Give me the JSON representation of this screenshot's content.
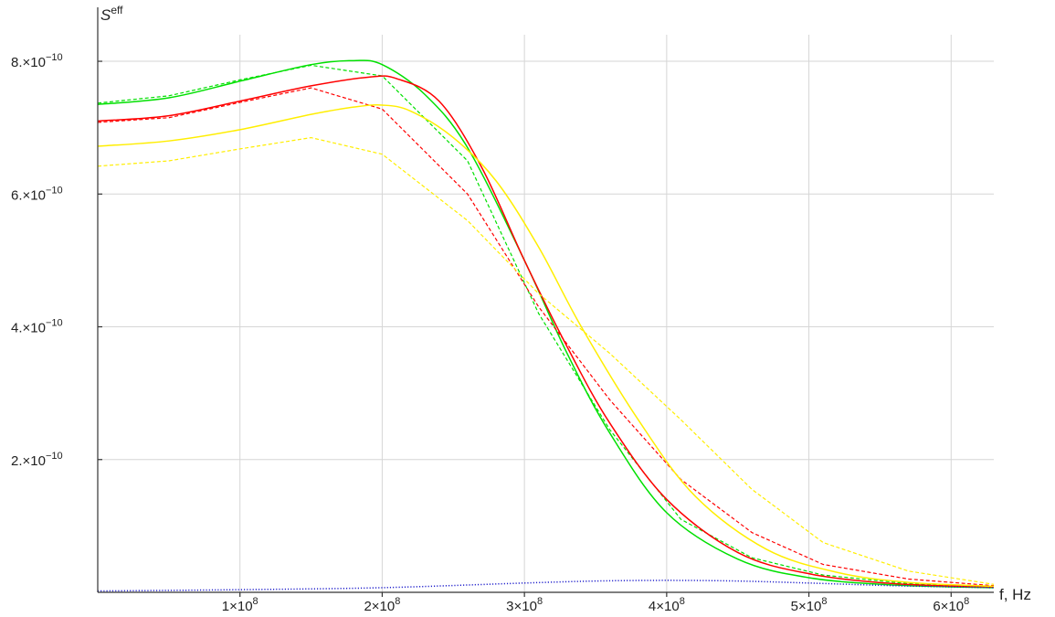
{
  "chart_data": {
    "type": "line",
    "title": "",
    "xlabel": "f, Hz",
    "ylabel_base": "S",
    "ylabel_sup": "eff",
    "xlim": [
      0,
      630000000
    ],
    "ylim": [
      0,
      8.4e-10
    ],
    "grid": true,
    "x_ticks": [
      {
        "value": 100000000,
        "mant": "1",
        "times": "×10",
        "exp": "8"
      },
      {
        "value": 200000000,
        "mant": "2",
        "times": "×10",
        "exp": "8"
      },
      {
        "value": 300000000,
        "mant": "3",
        "times": "×10",
        "exp": "8"
      },
      {
        "value": 400000000,
        "mant": "4",
        "times": "×10",
        "exp": "8"
      },
      {
        "value": 500000000,
        "mant": "5",
        "times": "×10",
        "exp": "8"
      },
      {
        "value": 600000000,
        "mant": "6",
        "times": "×10",
        "exp": "8"
      }
    ],
    "y_ticks": [
      {
        "value": 2e-10,
        "mant": "2.",
        "times": "×10",
        "exp": "−10"
      },
      {
        "value": 4e-10,
        "mant": "4.",
        "times": "×10",
        "exp": "−10"
      },
      {
        "value": 6e-10,
        "mant": "6.",
        "times": "×10",
        "exp": "−10"
      },
      {
        "value": 8e-10,
        "mant": "8.",
        "times": "×10",
        "exp": "−10"
      }
    ],
    "series": [
      {
        "color": "#00e000",
        "style": "solid",
        "x": [
          0,
          50000000,
          100000000,
          150000000,
          180000000,
          200000000,
          230000000,
          260000000,
          300000000,
          330000000,
          360000000,
          400000000,
          450000000,
          500000000,
          560000000,
          630000000
        ],
        "y": [
          7.35e-10,
          7.45e-10,
          7.7e-10,
          7.95e-10,
          8.01e-10,
          7.95e-10,
          7.5e-10,
          6.7e-10,
          5e-10,
          3.6e-10,
          2.4e-10,
          1.2e-10,
          5e-11,
          2.2e-11,
          1.1e-11,
          7e-12
        ]
      },
      {
        "color": "#00e000",
        "style": "dashed",
        "x": [
          0,
          50000000,
          100000000,
          150000000,
          200000000,
          260000000,
          310000000,
          360000000,
          410000000,
          460000000,
          510000000,
          570000000,
          630000000
        ],
        "y": [
          7.37e-10,
          7.48e-10,
          7.72e-10,
          7.94e-10,
          7.78e-10,
          6.5e-10,
          4.2e-10,
          2.45e-10,
          1.1e-10,
          5.2e-11,
          2.6e-11,
          1.3e-11,
          8e-12
        ]
      },
      {
        "color": "#ff0000",
        "style": "solid",
        "x": [
          0,
          50000000,
          100000000,
          150000000,
          190000000,
          210000000,
          240000000,
          270000000,
          300000000,
          330000000,
          360000000,
          400000000,
          450000000,
          500000000,
          560000000,
          630000000
        ],
        "y": [
          7.1e-10,
          7.18e-10,
          7.4e-10,
          7.63e-10,
          7.76e-10,
          7.74e-10,
          7.4e-10,
          6.4e-10,
          5e-10,
          3.7e-10,
          2.55e-10,
          1.4e-10,
          6e-11,
          2.8e-11,
          1.3e-11,
          8e-12
        ]
      },
      {
        "color": "#ff0000",
        "style": "dashed",
        "x": [
          0,
          50000000,
          100000000,
          150000000,
          200000000,
          260000000,
          310000000,
          360000000,
          410000000,
          460000000,
          510000000,
          570000000,
          630000000
        ],
        "y": [
          7.08e-10,
          7.15e-10,
          7.38e-10,
          7.6e-10,
          7.28e-10,
          6e-10,
          4.3e-10,
          2.9e-10,
          1.7e-10,
          9e-11,
          4.2e-11,
          2e-11,
          1e-11
        ]
      },
      {
        "color": "#ffee00",
        "style": "solid",
        "x": [
          0,
          50000000,
          100000000,
          150000000,
          180000000,
          200000000,
          220000000,
          250000000,
          280000000,
          310000000,
          340000000,
          380000000,
          420000000,
          470000000,
          520000000,
          570000000,
          630000000
        ],
        "y": [
          6.72e-10,
          6.8e-10,
          6.97e-10,
          7.2e-10,
          7.31e-10,
          7.34e-10,
          7.25e-10,
          6.85e-10,
          6.2e-10,
          5.2e-10,
          4e-10,
          2.6e-10,
          1.45e-10,
          6.5e-11,
          3e-11,
          1.5e-11,
          9e-12
        ]
      },
      {
        "color": "#ffee00",
        "style": "dashed",
        "x": [
          0,
          50000000,
          100000000,
          150000000,
          200000000,
          260000000,
          310000000,
          360000000,
          410000000,
          460000000,
          510000000,
          570000000,
          630000000
        ],
        "y": [
          6.42e-10,
          6.5e-10,
          6.68e-10,
          6.85e-10,
          6.6e-10,
          5.6e-10,
          4.5e-10,
          3.6e-10,
          2.6e-10,
          1.55e-10,
          7.5e-11,
          3.2e-11,
          1.2e-11
        ]
      },
      {
        "color": "#2222cc",
        "style": "dotted",
        "x": [
          0,
          100000000,
          200000000,
          300000000,
          350000000,
          400000000,
          450000000,
          500000000,
          560000000,
          630000000
        ],
        "y": [
          2e-12,
          4e-12,
          7e-12,
          1.4e-11,
          1.7e-11,
          1.8e-11,
          1.7e-11,
          1.4e-11,
          1e-11,
          7e-12
        ]
      }
    ]
  }
}
